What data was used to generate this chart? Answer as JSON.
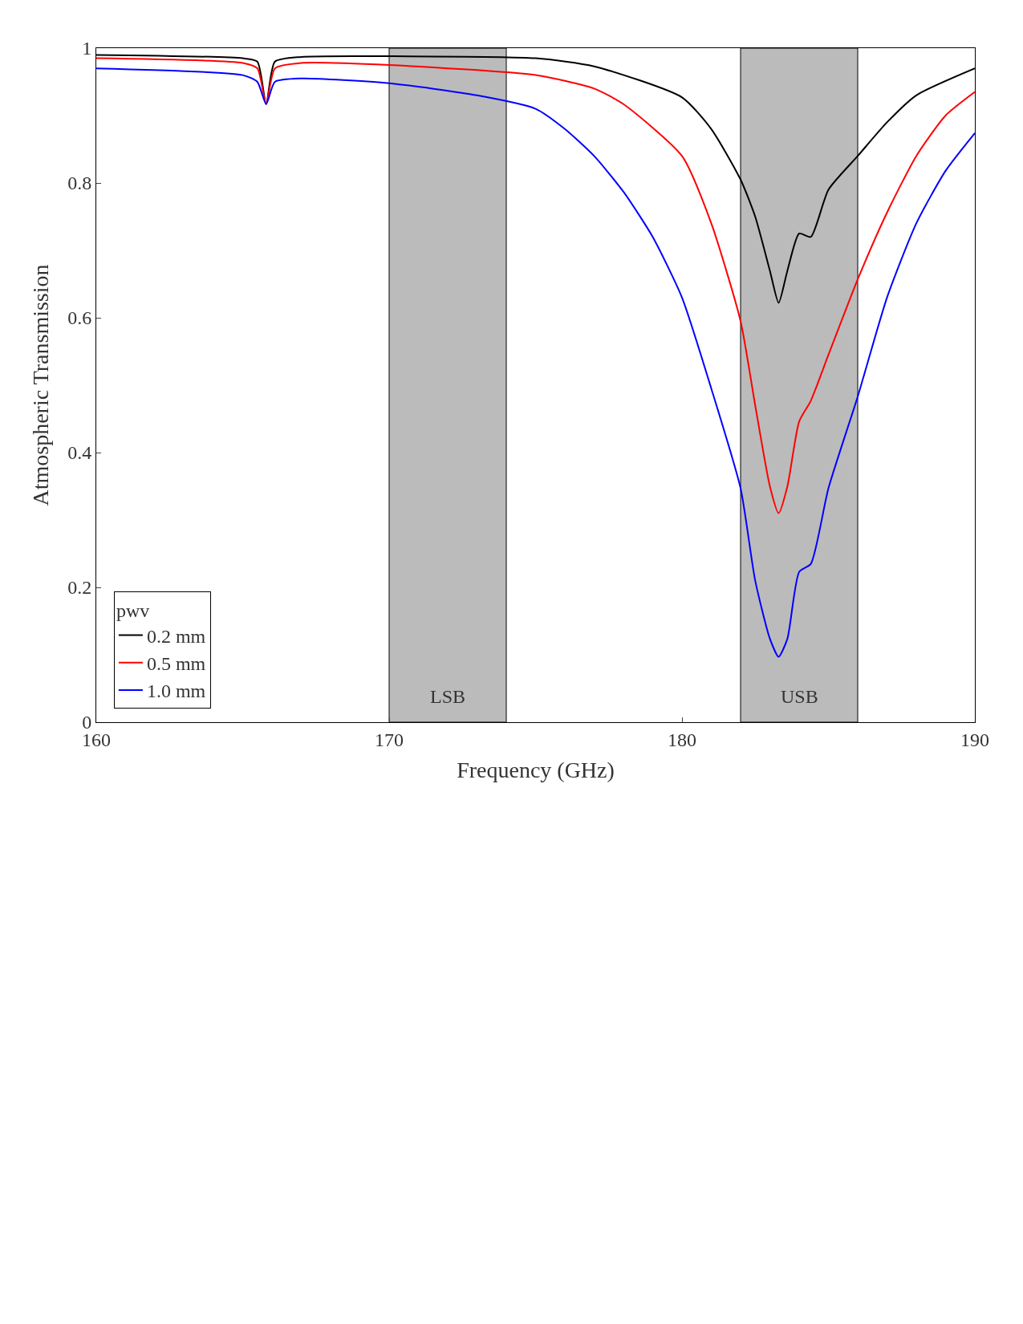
{
  "chart_data": {
    "type": "line",
    "xlabel": "Frequency (GHz)",
    "ylabel": "Atmospheric Transmission",
    "legend_title": "pwv",
    "xlim": [
      160,
      190
    ],
    "xticks": [
      160,
      170,
      180,
      190
    ],
    "ylim": [
      0,
      1
    ],
    "yticks": [
      0,
      0.2,
      0.4,
      0.6,
      0.8,
      1
    ],
    "grid": false,
    "legend": "bottom left",
    "line_style": "solid",
    "bands": [
      {
        "axis": "x",
        "from": 170,
        "to": 174,
        "label": "LSB",
        "color": "#bbbbbb"
      },
      {
        "axis": "x",
        "from": 182,
        "to": 186,
        "label": "USB",
        "color": "#bbbbbb"
      }
    ],
    "series": [
      {
        "name": "0.2 mm",
        "color": "#000000",
        "x": [
          160,
          165,
          165.5,
          165.8,
          166.1,
          167,
          170,
          175,
          177,
          180,
          181,
          182,
          182.5,
          183,
          183.3,
          183.6,
          184,
          184.4,
          185,
          186,
          187,
          188,
          190
        ],
        "values": [
          0.99,
          0.985,
          0.98,
          0.917,
          0.98,
          0.987,
          0.988,
          0.985,
          0.973,
          0.927,
          0.88,
          0.805,
          0.75,
          0.67,
          0.622,
          0.67,
          0.725,
          0.72,
          0.79,
          0.84,
          0.89,
          0.93,
          0.97
        ]
      },
      {
        "name": "0.5 mm",
        "color": "#ff0000",
        "x": [
          160,
          165,
          165.5,
          165.8,
          166.1,
          167,
          170,
          175,
          177,
          178,
          180,
          181,
          182,
          182.5,
          183,
          183.3,
          183.6,
          184,
          184.4,
          185,
          186,
          187,
          188,
          189,
          190
        ],
        "values": [
          0.985,
          0.978,
          0.97,
          0.917,
          0.97,
          0.978,
          0.975,
          0.96,
          0.94,
          0.917,
          0.84,
          0.74,
          0.595,
          0.47,
          0.35,
          0.31,
          0.35,
          0.446,
          0.477,
          0.545,
          0.657,
          0.756,
          0.84,
          0.9,
          0.935
        ]
      },
      {
        "name": "1.0 mm",
        "color": "#0000ff",
        "x": [
          160,
          165,
          165.5,
          165.8,
          166.1,
          167,
          170,
          173,
          175,
          176,
          177,
          178,
          179,
          180,
          181,
          182,
          182.5,
          183,
          183.3,
          183.6,
          184,
          184.4,
          185,
          186,
          187,
          188,
          189,
          190
        ],
        "values": [
          0.97,
          0.96,
          0.95,
          0.917,
          0.95,
          0.955,
          0.948,
          0.93,
          0.91,
          0.88,
          0.84,
          0.787,
          0.72,
          0.63,
          0.495,
          0.347,
          0.21,
          0.124,
          0.097,
          0.124,
          0.223,
          0.235,
          0.347,
          0.483,
          0.63,
          0.74,
          0.818,
          0.874
        ]
      }
    ]
  }
}
